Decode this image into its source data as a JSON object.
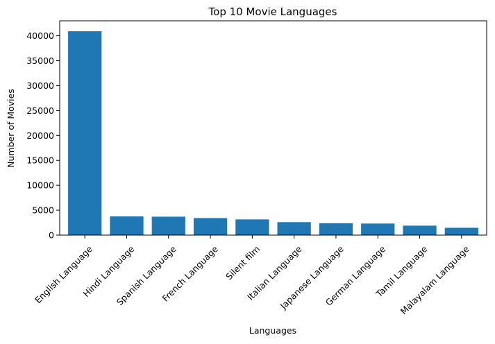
{
  "chart_data": {
    "type": "bar",
    "title": "Top 10 Movie Languages",
    "xlabel": "Languages",
    "ylabel": "Number of Movies",
    "categories": [
      "English Language",
      "Hindi Language",
      "Spanish Language",
      "French Language",
      "Silent film",
      "Italian Language",
      "Japanese Language",
      "German Language",
      "Tamil Language",
      "Malayalam Language"
    ],
    "values": [
      40900,
      3750,
      3700,
      3420,
      3150,
      2600,
      2380,
      2320,
      1900,
      1470
    ],
    "ylim": [
      0,
      43000
    ],
    "yticks": [
      0,
      5000,
      10000,
      15000,
      20000,
      25000,
      30000,
      35000,
      40000
    ],
    "ytick_labels": [
      "0",
      "5000",
      "10000",
      "15000",
      "20000",
      "25000",
      "30000",
      "35000",
      "40000"
    ],
    "grid": false,
    "bar_color": "#1f77b4"
  }
}
